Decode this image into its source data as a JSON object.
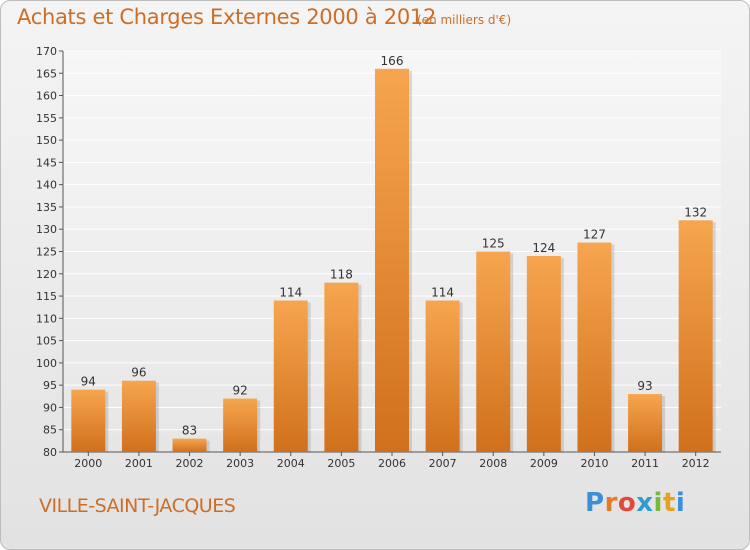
{
  "header": {
    "title": "Achats et Charges Externes 2000 à 2012",
    "subtitle": "(en milliers d'€)"
  },
  "footer": {
    "town": "VILLE-SAINT-JACQUES",
    "logo_letters": [
      "P",
      "r",
      "o",
      "x",
      "i",
      "t",
      "i"
    ]
  },
  "colors": {
    "bar_top": "#f7a54f",
    "bar_bottom": "#d0701c",
    "title": "#cc6e27",
    "logo": [
      "#3a8fd6",
      "#e6792a",
      "#e04a3a",
      "#2d9bd6",
      "#78b83a",
      "#e6a21f",
      "#3a8fd6"
    ]
  },
  "chart_data": {
    "type": "bar",
    "categories": [
      "2000",
      "2001",
      "2002",
      "2003",
      "2004",
      "2005",
      "2006",
      "2007",
      "2008",
      "2009",
      "2010",
      "2011",
      "2012"
    ],
    "values": [
      94,
      96,
      83,
      92,
      114,
      118,
      166,
      114,
      125,
      124,
      127,
      93,
      132
    ],
    "title": "Achats et Charges Externes 2000 à 2012",
    "subtitle": "(en milliers d'€)",
    "ylim": [
      80,
      170
    ],
    "yticks": [
      80,
      85,
      90,
      95,
      100,
      105,
      110,
      115,
      120,
      125,
      130,
      135,
      140,
      145,
      150,
      155,
      160,
      165,
      170
    ],
    "grid": true
  }
}
